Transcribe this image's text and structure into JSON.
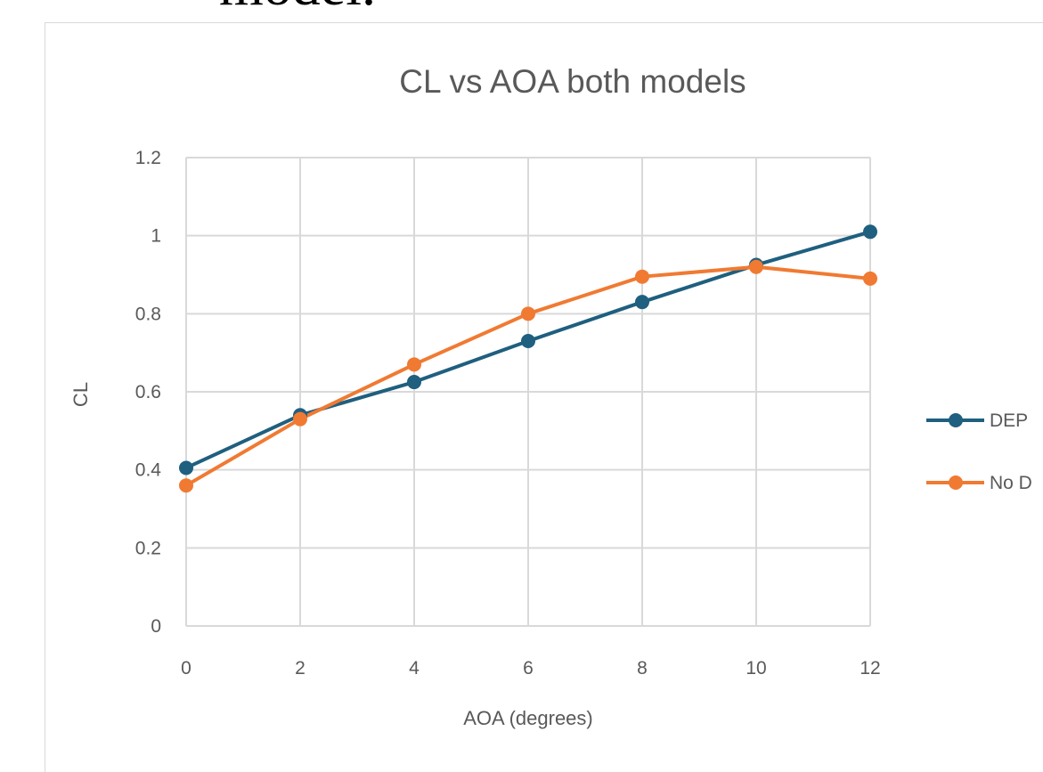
{
  "document": {
    "partial_text": "model."
  },
  "chart_data": {
    "type": "line",
    "title": "CL vs AOA both models",
    "xlabel": "AOA (degrees)",
    "ylabel": "CL",
    "x": [
      0,
      2,
      4,
      6,
      8,
      10,
      12
    ],
    "xticks": [
      "0",
      "2",
      "4",
      "6",
      "8",
      "10",
      "12"
    ],
    "yticks": [
      "0",
      "0.2",
      "0.4",
      "0.6",
      "0.8",
      "1",
      "1.2"
    ],
    "ylim": [
      0,
      1.2
    ],
    "xlim": [
      0,
      12
    ],
    "grid": true,
    "legend_position": "right",
    "series": [
      {
        "name": "DEP",
        "color": "#1f5f7f",
        "values": [
          0.405,
          0.54,
          0.625,
          0.73,
          0.83,
          0.925,
          1.01
        ]
      },
      {
        "name": "No D",
        "color": "#f07a32",
        "values": [
          0.36,
          0.53,
          0.67,
          0.8,
          0.895,
          0.92,
          0.89
        ]
      }
    ]
  }
}
